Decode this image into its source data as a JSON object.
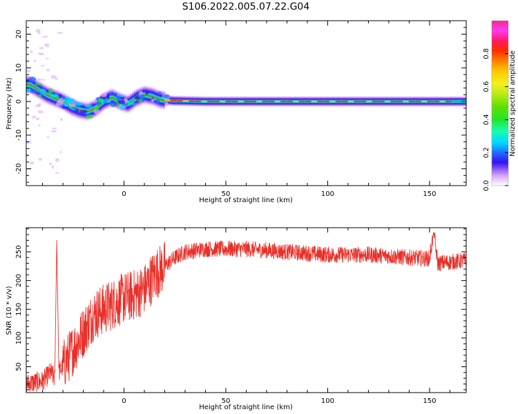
{
  "title": "S106.2022.005.07.22.G04",
  "colors": {
    "snr_line": "#e8302a",
    "axis": "#000000"
  },
  "chart_data": [
    {
      "type": "heatmap",
      "name": "spectrogram",
      "xlabel": "Height of straight line (km)",
      "ylabel": "Frequency (Hz)",
      "xlim": [
        -48,
        168
      ],
      "ylim": [
        -25,
        24
      ],
      "xticks": [
        0,
        50,
        100,
        150
      ],
      "yticks": [
        -20,
        -10,
        0,
        10,
        20
      ],
      "grid": false,
      "colorbar": {
        "label": "Normalized spectral amplitude",
        "range": [
          0,
          1
        ],
        "ticks": [
          0.0,
          0.2,
          0.4,
          0.6,
          0.8
        ],
        "tick_labels": [
          "0.0",
          "0.2",
          "0.4",
          "0.6",
          "0.8"
        ],
        "colormap": "gist_ncar"
      },
      "ridge": [
        {
          "x": -46,
          "y": 5
        },
        {
          "x": -42,
          "y": 3.5
        },
        {
          "x": -38,
          "y": 2
        },
        {
          "x": -34,
          "y": 1
        },
        {
          "x": -30,
          "y": 0
        },
        {
          "x": -26,
          "y": -1.5
        },
        {
          "x": -22,
          "y": -2.5
        },
        {
          "x": -18,
          "y": -3
        },
        {
          "x": -14,
          "y": -2
        },
        {
          "x": -10,
          "y": 0
        },
        {
          "x": -6,
          "y": 1.2
        },
        {
          "x": -2,
          "y": 0
        },
        {
          "x": 2,
          "y": -0.8
        },
        {
          "x": 6,
          "y": 1
        },
        {
          "x": 10,
          "y": 2
        },
        {
          "x": 14,
          "y": 1.5
        },
        {
          "x": 18,
          "y": 0.5
        },
        {
          "x": 24,
          "y": 0.2
        },
        {
          "x": 40,
          "y": 0
        },
        {
          "x": 70,
          "y": 0
        },
        {
          "x": 100,
          "y": 0
        },
        {
          "x": 130,
          "y": 0
        },
        {
          "x": 168,
          "y": 0
        }
      ]
    },
    {
      "type": "line",
      "name": "snr",
      "xlabel": "Height of straight line (km)",
      "ylabel": "SNR (10 * v/v)",
      "xlim": [
        -48,
        168
      ],
      "ylim": [
        5,
        292
      ],
      "xticks": [
        0,
        50,
        100,
        150
      ],
      "yticks": [
        50,
        100,
        150,
        200,
        250
      ],
      "grid": false,
      "envelope": [
        {
          "x": -48,
          "y": 20
        },
        {
          "x": -40,
          "y": 25
        },
        {
          "x": -36,
          "y": 40
        },
        {
          "x": -34,
          "y": 30
        },
        {
          "x": -33,
          "y": 270
        },
        {
          "x": -32,
          "y": 40
        },
        {
          "x": -25,
          "y": 80
        },
        {
          "x": -20,
          "y": 110
        },
        {
          "x": -15,
          "y": 140
        },
        {
          "x": -10,
          "y": 150
        },
        {
          "x": -5,
          "y": 160
        },
        {
          "x": 0,
          "y": 170
        },
        {
          "x": 5,
          "y": 175
        },
        {
          "x": 10,
          "y": 185
        },
        {
          "x": 15,
          "y": 210
        },
        {
          "x": 20,
          "y": 225
        },
        {
          "x": 25,
          "y": 240
        },
        {
          "x": 30,
          "y": 250
        },
        {
          "x": 40,
          "y": 255
        },
        {
          "x": 60,
          "y": 255
        },
        {
          "x": 80,
          "y": 250
        },
        {
          "x": 100,
          "y": 245
        },
        {
          "x": 120,
          "y": 245
        },
        {
          "x": 140,
          "y": 240
        },
        {
          "x": 150,
          "y": 238
        },
        {
          "x": 152,
          "y": 285
        },
        {
          "x": 154,
          "y": 230
        },
        {
          "x": 168,
          "y": 235
        }
      ]
    }
  ]
}
